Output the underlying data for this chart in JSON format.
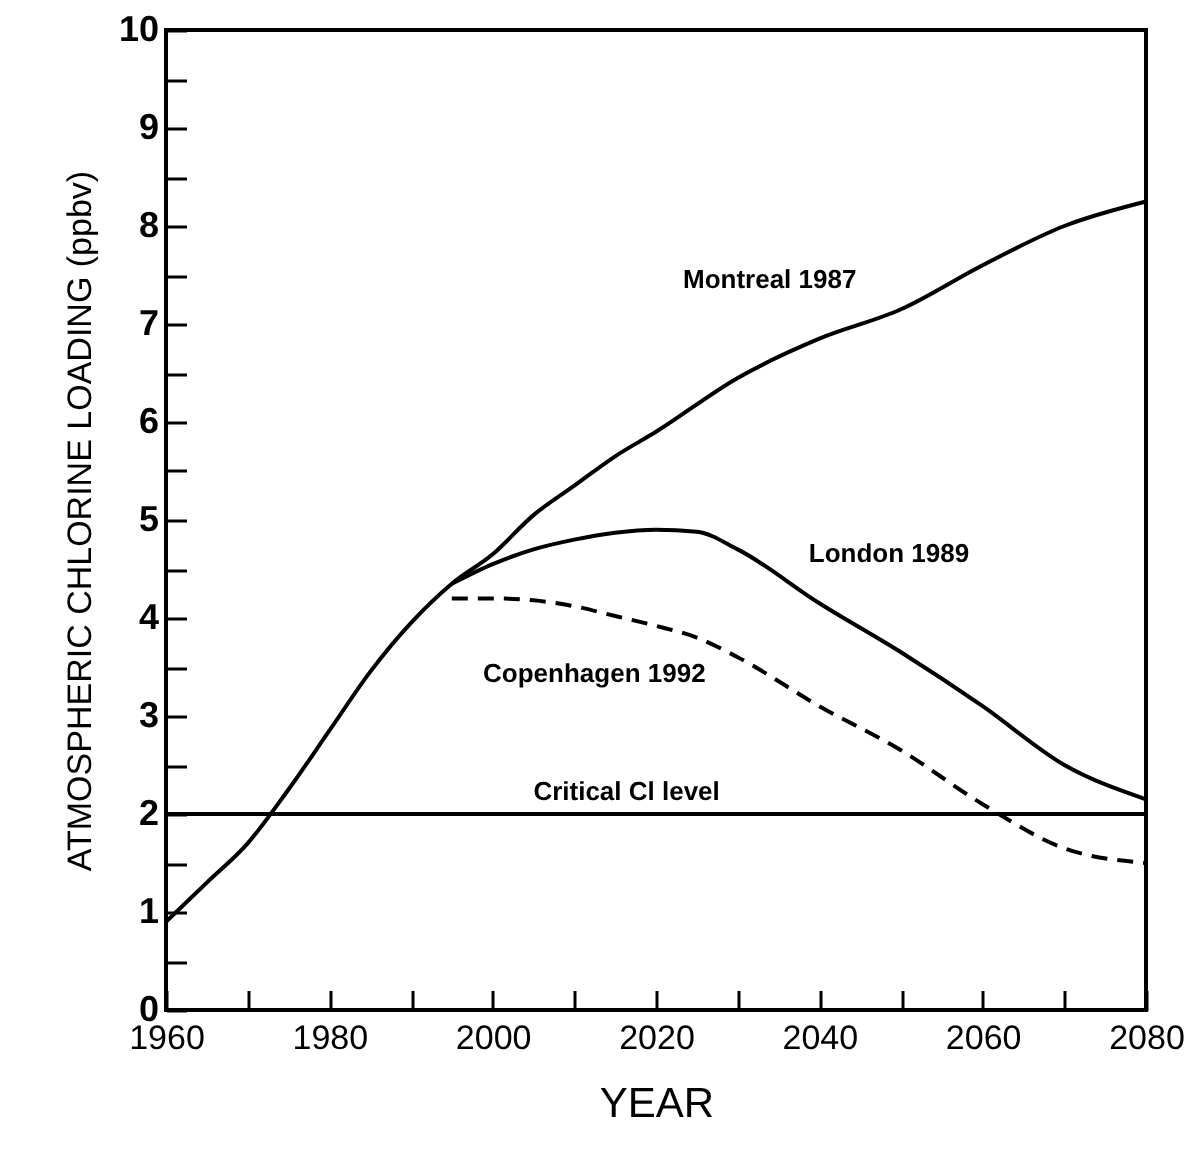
{
  "chart_data": {
    "type": "line",
    "xlabel": "YEAR",
    "ylabel": "ATMOSPHERIC CHLORINE LOADING (ppbv)",
    "xlim": [
      1960,
      2080
    ],
    "ylim": [
      0,
      10
    ],
    "xticks": [
      1960,
      {
        "value": 1970,
        "label": null
      },
      1980,
      {
        "value": 1990,
        "label": null
      },
      2000,
      {
        "value": 2010,
        "label": null
      },
      2020,
      {
        "value": 2030,
        "label": null
      },
      2040,
      {
        "value": 2050,
        "label": null
      },
      2060,
      {
        "value": 2070,
        "label": null
      },
      2080
    ],
    "yticks": [
      0,
      {
        "value": 0.5,
        "label": null
      },
      1,
      {
        "value": 1.5,
        "label": null
      },
      2,
      {
        "value": 2.5,
        "label": null
      },
      3,
      {
        "value": 3.5,
        "label": null
      },
      4,
      {
        "value": 4.5,
        "label": null
      },
      5,
      {
        "value": 5.5,
        "label": null
      },
      6,
      {
        "value": 6.5,
        "label": null
      },
      7,
      {
        "value": 7.5,
        "label": null
      },
      8,
      {
        "value": 8.5,
        "label": null
      },
      9,
      {
        "value": 9.5,
        "label": null
      },
      10
    ],
    "grid": false,
    "series": [
      {
        "name": "Montreal 1987",
        "color": "#000000",
        "line_style": "solid",
        "x": [
          1960,
          1965,
          1970,
          1975,
          1980,
          1985,
          1990,
          1995,
          2000,
          2005,
          2010,
          2015,
          2020,
          2030,
          2040,
          2050,
          2060,
          2070,
          2080
        ],
        "values": [
          0.9,
          1.3,
          1.7,
          2.25,
          2.85,
          3.45,
          3.95,
          4.35,
          4.65,
          5.05,
          5.35,
          5.65,
          5.9,
          6.45,
          6.85,
          7.15,
          7.6,
          8.0,
          8.25
        ]
      },
      {
        "name": "London 1989",
        "color": "#000000",
        "line_style": "solid",
        "x": [
          1995,
          2000,
          2005,
          2010,
          2015,
          2020,
          2025,
          2030,
          2040,
          2050,
          2060,
          2070,
          2080
        ],
        "values": [
          4.35,
          4.55,
          4.7,
          4.8,
          4.87,
          4.9,
          4.88,
          4.7,
          4.15,
          3.65,
          3.1,
          2.5,
          2.15
        ]
      },
      {
        "name": "Copenhagen 1992",
        "color": "#000000",
        "line_style": "dashed",
        "x": [
          1995,
          2000,
          2005,
          2010,
          2015,
          2020,
          2025,
          2030,
          2040,
          2050,
          2060,
          2070,
          2080
        ],
        "values": [
          4.2,
          4.2,
          4.18,
          4.12,
          4.02,
          3.92,
          3.8,
          3.6,
          3.1,
          2.65,
          2.1,
          1.65,
          1.5
        ]
      }
    ],
    "ref_lines": [
      {
        "axis": "y",
        "value": 2,
        "label": "Critical Cl level",
        "color": "#000000"
      }
    ]
  }
}
